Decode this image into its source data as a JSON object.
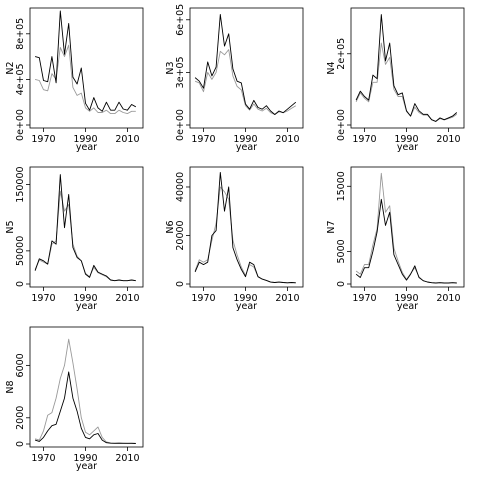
{
  "chart_data": [
    {
      "type": "line",
      "ylabel": "N2",
      "xlabel": "year",
      "xlim": [
        1965,
        2016
      ],
      "ylim": [
        0,
        1000000
      ],
      "xticks": [
        1970,
        1990,
        2010
      ],
      "xtick_labels": [
        "1970",
        "1990",
        "2010"
      ],
      "yticks": [
        0,
        400000,
        800000
      ],
      "ytick_labels": [
        "0e+00",
        "4e+05",
        "8e+05"
      ],
      "grid": false,
      "legend": "none",
      "x": [
        1966,
        1968,
        1970,
        1972,
        1974,
        1976,
        1978,
        1980,
        1982,
        1984,
        1986,
        1988,
        1990,
        1992,
        1994,
        1996,
        1998,
        2000,
        2002,
        2004,
        2006,
        2008,
        2010,
        2012,
        2014
      ],
      "series": [
        {
          "color": "#000000",
          "values": [
            600000,
            590000,
            390000,
            380000,
            600000,
            370000,
            1000000,
            620000,
            890000,
            420000,
            360000,
            500000,
            190000,
            130000,
            240000,
            150000,
            120000,
            200000,
            130000,
            130000,
            200000,
            140000,
            130000,
            180000,
            160000
          ]
        },
        {
          "color": "#9a9a9a",
          "values": [
            400000,
            390000,
            310000,
            300000,
            450000,
            400000,
            680000,
            600000,
            700000,
            330000,
            260000,
            280000,
            150000,
            120000,
            150000,
            110000,
            110000,
            130000,
            100000,
            100000,
            130000,
            110000,
            100000,
            120000,
            120000
          ]
        }
      ]
    },
    {
      "type": "line",
      "ylabel": "N3",
      "xlabel": "year",
      "xlim": [
        1965,
        2016
      ],
      "ylim": [
        0,
        650000
      ],
      "xticks": [
        1970,
        1990,
        2010
      ],
      "xtick_labels": [
        "1970",
        "1990",
        "2010"
      ],
      "yticks": [
        0,
        300000,
        600000
      ],
      "ytick_labels": [
        "0e+00",
        "3e+05",
        "6e+05"
      ],
      "grid": false,
      "legend": "none",
      "x": [
        1966,
        1968,
        1970,
        1972,
        1974,
        1976,
        1978,
        1980,
        1982,
        1984,
        1986,
        1988,
        1990,
        1992,
        1994,
        1996,
        1998,
        2000,
        2002,
        2004,
        2006,
        2008,
        2010,
        2012,
        2014
      ],
      "series": [
        {
          "color": "#000000",
          "values": [
            270000,
            250000,
            210000,
            360000,
            280000,
            330000,
            630000,
            450000,
            520000,
            320000,
            250000,
            240000,
            120000,
            90000,
            140000,
            100000,
            90000,
            110000,
            80000,
            60000,
            80000,
            70000,
            90000,
            110000,
            130000
          ]
        },
        {
          "color": "#9a9a9a",
          "values": [
            250000,
            240000,
            190000,
            300000,
            260000,
            300000,
            420000,
            400000,
            430000,
            280000,
            220000,
            200000,
            110000,
            85000,
            120000,
            90000,
            80000,
            95000,
            70000,
            60000,
            75000,
            70000,
            80000,
            95000,
            110000
          ]
        }
      ]
    },
    {
      "type": "line",
      "ylabel": "N4",
      "xlabel": "year",
      "xlim": [
        1965,
        2016
      ],
      "ylim": [
        0,
        320000
      ],
      "xticks": [
        1970,
        1990,
        2010
      ],
      "xtick_labels": [
        "1970",
        "1990",
        "2010"
      ],
      "yticks": [
        0,
        200000
      ],
      "ytick_labels": [
        "0e+00",
        "2e+05"
      ],
      "grid": false,
      "legend": "none",
      "x": [
        1966,
        1968,
        1970,
        1972,
        1974,
        1976,
        1978,
        1980,
        1982,
        1984,
        1986,
        1988,
        1990,
        1992,
        1994,
        1996,
        1998,
        2000,
        2002,
        2004,
        2006,
        2008,
        2010,
        2012,
        2014
      ],
      "series": [
        {
          "color": "#000000",
          "values": [
            70000,
            95000,
            80000,
            70000,
            140000,
            130000,
            310000,
            180000,
            230000,
            110000,
            85000,
            90000,
            40000,
            25000,
            60000,
            40000,
            30000,
            30000,
            15000,
            10000,
            20000,
            15000,
            20000,
            25000,
            35000
          ]
        },
        {
          "color": "#9a9a9a",
          "values": [
            65000,
            90000,
            75000,
            65000,
            120000,
            120000,
            230000,
            170000,
            190000,
            100000,
            80000,
            80000,
            38000,
            25000,
            50000,
            35000,
            28000,
            28000,
            15000,
            10000,
            18000,
            14000,
            18000,
            22000,
            30000
          ]
        }
      ]
    },
    {
      "type": "line",
      "ylabel": "N5",
      "xlabel": "year",
      "xlim": [
        1965,
        2016
      ],
      "ylim": [
        0,
        172000
      ],
      "xticks": [
        1970,
        1990,
        2010
      ],
      "xtick_labels": [
        "1970",
        "1990",
        "2010"
      ],
      "yticks": [
        0,
        50000,
        150000
      ],
      "ytick_labels": [
        "0",
        "50000",
        "150000"
      ],
      "grid": false,
      "legend": "none",
      "x": [
        1966,
        1968,
        1970,
        1972,
        1974,
        1976,
        1978,
        1980,
        1982,
        1984,
        1986,
        1988,
        1990,
        1992,
        1994,
        1996,
        1998,
        2000,
        2002,
        2004,
        2006,
        2008,
        2010,
        2012,
        2014
      ],
      "series": [
        {
          "color": "#000000",
          "values": [
            20000,
            38000,
            35000,
            30000,
            65000,
            60000,
            165000,
            85000,
            135000,
            55000,
            40000,
            35000,
            15000,
            10000,
            28000,
            18000,
            15000,
            12000,
            6000,
            5000,
            6000,
            5000,
            5000,
            6000,
            5000
          ]
        },
        {
          "color": "#9a9a9a",
          "values": [
            22000,
            36000,
            33000,
            30000,
            60000,
            65000,
            140000,
            110000,
            120000,
            60000,
            42000,
            35000,
            16000,
            11000,
            25000,
            17000,
            14000,
            11000,
            6000,
            5000,
            6000,
            5000,
            5000,
            6000,
            5000
          ]
        }
      ]
    },
    {
      "type": "line",
      "ylabel": "N6",
      "xlabel": "year",
      "xlim": [
        1965,
        2016
      ],
      "ylim": [
        0,
        47000
      ],
      "xticks": [
        1970,
        1990,
        2010
      ],
      "xtick_labels": [
        "1970",
        "1990",
        "2010"
      ],
      "yticks": [
        0,
        20000,
        40000
      ],
      "ytick_labels": [
        "0",
        "20000",
        "40000"
      ],
      "grid": false,
      "legend": "none",
      "x": [
        1966,
        1968,
        1970,
        1972,
        1974,
        1976,
        1978,
        1980,
        1982,
        1984,
        1986,
        1988,
        1990,
        1992,
        1994,
        1996,
        1998,
        2000,
        2002,
        2004,
        2006,
        2008,
        2010,
        2012,
        2014
      ],
      "series": [
        {
          "color": "#000000",
          "values": [
            5000,
            9000,
            8000,
            9000,
            20000,
            22000,
            46000,
            30000,
            40000,
            15000,
            10000,
            6000,
            3000,
            9000,
            8000,
            3000,
            2000,
            1500,
            800,
            600,
            800,
            600,
            500,
            600,
            500
          ]
        },
        {
          "color": "#9a9a9a",
          "values": [
            5500,
            10000,
            9000,
            10000,
            18000,
            25000,
            40000,
            38000,
            35000,
            18000,
            12000,
            7000,
            3500,
            8000,
            7000,
            3000,
            2000,
            1500,
            800,
            600,
            800,
            600,
            500,
            600,
            500
          ]
        }
      ]
    },
    {
      "type": "line",
      "ylabel": "N7",
      "xlabel": "year",
      "xlim": [
        1965,
        2016
      ],
      "ylim": [
        0,
        17500
      ],
      "xticks": [
        1970,
        1990,
        2010
      ],
      "xtick_labels": [
        "1970",
        "1990",
        "2010"
      ],
      "yticks": [
        0,
        5000,
        15000
      ],
      "ytick_labels": [
        "0",
        "5000",
        "15000"
      ],
      "grid": false,
      "legend": "none",
      "x": [
        1966,
        1968,
        1970,
        1972,
        1974,
        1976,
        1978,
        1980,
        1982,
        1984,
        1986,
        1988,
        1990,
        1992,
        1994,
        1996,
        1998,
        2000,
        2002,
        2004,
        2006,
        2008,
        2010,
        2012,
        2014
      ],
      "series": [
        {
          "color": "#000000",
          "values": [
            1500,
            1000,
            2500,
            2500,
            5000,
            8000,
            13000,
            9000,
            11000,
            4500,
            3000,
            1500,
            600,
            1500,
            2800,
            1000,
            500,
            300,
            200,
            150,
            200,
            150,
            150,
            200,
            150
          ]
        },
        {
          "color": "#9a9a9a",
          "values": [
            2000,
            1500,
            3000,
            3000,
            6000,
            8500,
            17000,
            11000,
            12000,
            5500,
            3500,
            1800,
            700,
            1600,
            2500,
            1100,
            500,
            300,
            200,
            150,
            200,
            150,
            150,
            200,
            150
          ]
        }
      ]
    },
    {
      "type": "line",
      "ylabel": "N8",
      "xlabel": "year",
      "xlim": [
        1965,
        2016
      ],
      "ylim": [
        0,
        8700
      ],
      "xticks": [
        1970,
        1990,
        2010
      ],
      "xtick_labels": [
        "1970",
        "1990",
        "2010"
      ],
      "yticks": [
        0,
        2000,
        6000
      ],
      "ytick_labels": [
        "0",
        "2000",
        "6000"
      ],
      "grid": false,
      "legend": "none",
      "x": [
        1966,
        1968,
        1970,
        1972,
        1974,
        1976,
        1978,
        1980,
        1982,
        1984,
        1986,
        1988,
        1990,
        1992,
        1994,
        1996,
        1998,
        2000,
        2002,
        2004,
        2006,
        2008,
        2010,
        2012,
        2014
      ],
      "series": [
        {
          "color": "#000000",
          "values": [
            300,
            200,
            500,
            1000,
            1400,
            1500,
            2500,
            3500,
            5500,
            3500,
            2500,
            1200,
            500,
            400,
            700,
            800,
            300,
            100,
            60,
            50,
            60,
            50,
            50,
            50,
            40
          ]
        },
        {
          "color": "#9a9a9a",
          "values": [
            400,
            300,
            1000,
            2200,
            2400,
            3500,
            5000,
            6000,
            8000,
            6200,
            4200,
            2000,
            900,
            700,
            1000,
            1300,
            500,
            150,
            80,
            60,
            70,
            60,
            55,
            60,
            50
          ]
        }
      ]
    }
  ]
}
